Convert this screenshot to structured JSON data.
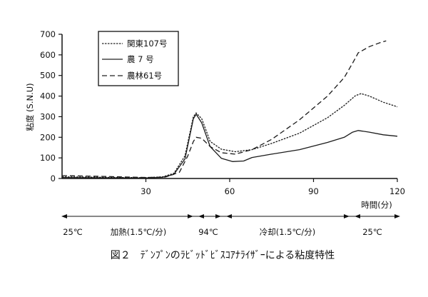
{
  "chart_data": {
    "type": "line",
    "ylabel": "粘度 (S.N.U)",
    "xlabel": "時間(分)",
    "xlim": [
      0,
      120
    ],
    "ylim": [
      0,
      700
    ],
    "xticks": [
      30,
      60,
      90,
      120
    ],
    "yticks": [
      0,
      100,
      200,
      300,
      400,
      500,
      600,
      700
    ],
    "legend_position": "top-left",
    "series": [
      {
        "name": "関東107号",
        "style": "dotted-dashed",
        "points": [
          [
            0,
            8
          ],
          [
            20,
            5
          ],
          [
            30,
            4
          ],
          [
            36,
            8
          ],
          [
            40,
            25
          ],
          [
            44,
            110
          ],
          [
            47,
            300
          ],
          [
            48,
            318
          ],
          [
            50,
            290
          ],
          [
            53,
            180
          ],
          [
            57,
            142
          ],
          [
            62,
            130
          ],
          [
            68,
            140
          ],
          [
            75,
            170
          ],
          [
            85,
            220
          ],
          [
            95,
            295
          ],
          [
            101,
            355
          ],
          [
            105,
            402
          ],
          [
            107,
            412
          ],
          [
            110,
            400
          ],
          [
            115,
            370
          ],
          [
            120,
            348
          ]
        ]
      },
      {
        "name": "農 7 号",
        "style": "solid",
        "points": [
          [
            0,
            5
          ],
          [
            20,
            3
          ],
          [
            30,
            2
          ],
          [
            36,
            6
          ],
          [
            40,
            20
          ],
          [
            44,
            95
          ],
          [
            47,
            290
          ],
          [
            48,
            312
          ],
          [
            50,
            270
          ],
          [
            53,
            155
          ],
          [
            57,
            98
          ],
          [
            61,
            82
          ],
          [
            65,
            85
          ],
          [
            68,
            102
          ],
          [
            75,
            118
          ],
          [
            85,
            140
          ],
          [
            95,
            175
          ],
          [
            101,
            200
          ],
          [
            104,
            225
          ],
          [
            106,
            233
          ],
          [
            110,
            225
          ],
          [
            115,
            212
          ],
          [
            120,
            205
          ]
        ]
      },
      {
        "name": "農林61号",
        "style": "dashed",
        "points": [
          [
            0,
            14
          ],
          [
            15,
            10
          ],
          [
            30,
            5
          ],
          [
            37,
            7
          ],
          [
            42,
            30
          ],
          [
            45,
            110
          ],
          [
            47,
            180
          ],
          [
            48,
            200
          ],
          [
            50,
            195
          ],
          [
            53,
            155
          ],
          [
            57,
            125
          ],
          [
            62,
            118
          ],
          [
            68,
            140
          ],
          [
            75,
            190
          ],
          [
            85,
            285
          ],
          [
            95,
            400
          ],
          [
            101,
            490
          ],
          [
            104,
            560
          ],
          [
            106,
            610
          ],
          [
            110,
            640
          ],
          [
            114,
            660
          ],
          [
            116,
            668
          ]
        ]
      }
    ]
  },
  "timeline": {
    "segments": [
      {
        "label": "25℃"
      },
      {
        "label": "加熱(1.5℃/分)"
      },
      {
        "label": "94℃"
      },
      {
        "label": "冷却(1.5℃/分)"
      },
      {
        "label": "25℃"
      }
    ]
  },
  "caption": "図２　ﾃﾞﾝﾌﾟﾝのﾗﾋﾞｯﾄﾞﾋﾞｽｺｱﾅﾗｲｻﾞｰによる粘度特性"
}
